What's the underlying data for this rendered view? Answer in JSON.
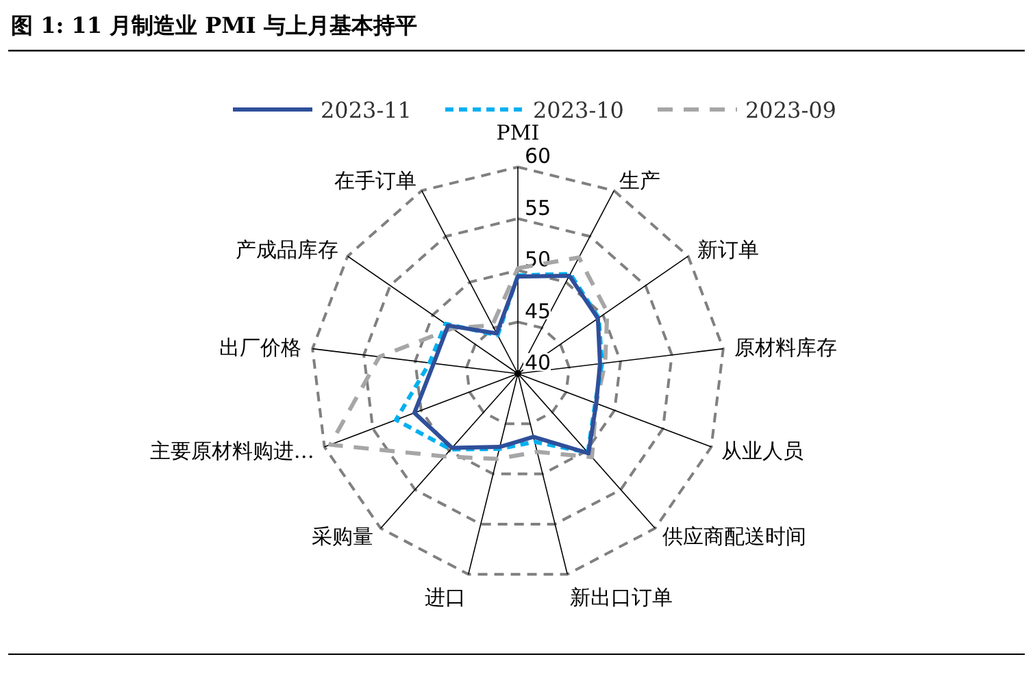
{
  "chart_data": {
    "type": "radar",
    "title": "图 1: 11 月制造业 PMI 与上月基本持平",
    "categories": [
      "PMI",
      "生产",
      "新订单",
      "原材料库存",
      "从业人员",
      "供应商配送时间",
      "新出口订单",
      "进口",
      "采购量",
      "主要原材料购进…",
      "出厂价格",
      "产成品库存",
      "在手订单"
    ],
    "series": [
      {
        "name": "2023-11",
        "color": "#2f4f9a",
        "line_style": "solid",
        "values": [
          49.4,
          50.7,
          49.4,
          48.0,
          48.1,
          50.3,
          46.3,
          47.3,
          49.6,
          50.7,
          48.2,
          48.2,
          44.4
        ]
      },
      {
        "name": "2023-10",
        "color": "#00b0f0",
        "line_style": "dashed",
        "values": [
          49.5,
          50.9,
          49.5,
          48.2,
          48.0,
          50.2,
          46.8,
          47.5,
          49.8,
          52.6,
          48.6,
          48.5,
          44.2
        ]
      },
      {
        "name": "2023-09",
        "color": "#a6a6a6",
        "line_style": "dashed",
        "values": [
          50.2,
          52.7,
          50.5,
          48.5,
          48.1,
          50.8,
          47.8,
          48.5,
          50.7,
          59.4,
          53.5,
          47.7,
          45.3
        ]
      }
    ],
    "ylim": [
      40,
      60
    ],
    "yticks": [
      40,
      45,
      50,
      55,
      60
    ],
    "grid": true,
    "legend": "top"
  }
}
